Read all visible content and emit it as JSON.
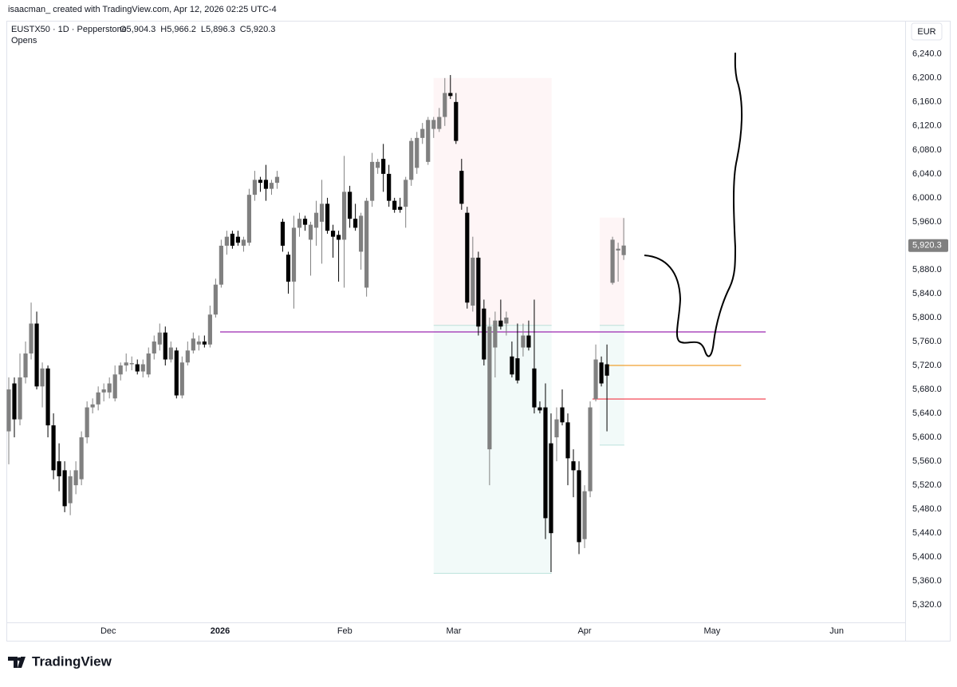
{
  "credit": "isaacman_ created with TradingView.com, Apr 12, 2026 02:25 UTC-4",
  "brand": "TradingView",
  "chart_data": {
    "type": "candlestick",
    "symbol": "EUSTX50 · 1D · Pepperstone",
    "ohlc_header": [
      "O5,904.3",
      "H5,966.2",
      "L5,896.3",
      "C5,920.3"
    ],
    "indicator": "Opens",
    "currency": "EUR",
    "up_color": "#808080",
    "down_color": "#000000",
    "open": [
      5610,
      5690,
      5630,
      5700,
      5740,
      5790,
      5685,
      5715,
      5620,
      5560,
      5545,
      5490,
      5520,
      5530,
      5600,
      5650,
      5655,
      5675,
      5675,
      5665,
      5705,
      5720,
      5722,
      5722,
      5710,
      5705,
      5740,
      5755,
      5775,
      5730,
      5745,
      5670,
      5725,
      5745,
      5755,
      5760,
      5755,
      5805,
      5855,
      5920,
      5940,
      5935,
      5920,
      5925,
      6005,
      6030,
      6030,
      6015,
      6025,
      5960,
      5905,
      5860,
      5950,
      5965,
      5930,
      5950,
      5960,
      5990,
      5945,
      5938,
      5930,
      6010,
      5965,
      5910,
      5850,
      5995,
      6050,
      6065,
      6040,
      5995,
      5985,
      5985,
      6030,
      6050,
      6100,
      6060,
      6115,
      6115,
      6135,
      6175,
      6160,
      6045,
      5975,
      5820,
      5900,
      5815,
      5580,
      5750,
      5795,
      5790,
      5735,
      5732,
      5750,
      5770,
      5715,
      5650,
      5650,
      5590,
      5600,
      5650,
      5625,
      5560,
      5545,
      5430,
      5510,
      5664,
      5725,
      5722,
      5858,
      5912,
      5904.3
    ],
    "high": [
      5700,
      5700,
      5740,
      5760,
      5825,
      5810,
      5725,
      5720,
      5640,
      5590,
      5560,
      5545,
      5560,
      5610,
      5660,
      5665,
      5685,
      5690,
      5700,
      5720,
      5725,
      5740,
      5735,
      5730,
      5730,
      5750,
      5770,
      5790,
      5785,
      5760,
      5750,
      5735,
      5760,
      5775,
      5770,
      5770,
      5820,
      5865,
      5930,
      5945,
      5945,
      5945,
      5935,
      6015,
      6045,
      6035,
      6055,
      6030,
      6045,
      5965,
      5910,
      5970,
      5975,
      5970,
      5960,
      5995,
      6030,
      6000,
      5955,
      5945,
      6070,
      6020,
      5990,
      5975,
      6000,
      6075,
      6065,
      6090,
      6055,
      6000,
      6000,
      6035,
      6100,
      6110,
      6125,
      6135,
      6135,
      6150,
      6200,
      6205,
      6175,
      6065,
      5985,
      5935,
      5910,
      5830,
      5800,
      5810,
      5830,
      5810,
      5760,
      5790,
      5790,
      5795,
      5830,
      5660,
      5690,
      5640,
      5650,
      5680,
      5640,
      5580,
      5560,
      5520,
      5660,
      5755,
      5735,
      5755,
      5935,
      5925,
      5966.2
    ],
    "low": [
      5555,
      5600,
      5620,
      5690,
      5730,
      5680,
      5650,
      5600,
      5530,
      5510,
      5475,
      5470,
      5505,
      5520,
      5590,
      5640,
      5645,
      5660,
      5665,
      5660,
      5695,
      5710,
      5712,
      5705,
      5700,
      5700,
      5730,
      5745,
      5720,
      5725,
      5665,
      5665,
      5720,
      5740,
      5745,
      5750,
      5750,
      5800,
      5850,
      5905,
      5915,
      5920,
      5910,
      5920,
      5995,
      6010,
      5995,
      6005,
      6015,
      5910,
      5840,
      5815,
      5935,
      5945,
      5870,
      5920,
      5890,
      5940,
      5900,
      5860,
      5850,
      5950,
      5945,
      5880,
      5835,
      5985,
      6040,
      6010,
      5985,
      5975,
      5975,
      5950,
      6020,
      6040,
      6090,
      6055,
      6100,
      6110,
      6120,
      6165,
      6090,
      5980,
      5815,
      5810,
      5770,
      5720,
      5520,
      5700,
      5780,
      5770,
      5700,
      5690,
      5735,
      5745,
      5640,
      5640,
      5430,
      5375,
      5560,
      5620,
      5520,
      5500,
      5405,
      5415,
      5500,
      5660,
      5685,
      5610,
      5855,
      5860,
      5896.3
    ],
    "close": [
      5680,
      5630,
      5700,
      5740,
      5790,
      5685,
      5715,
      5620,
      5545,
      5535,
      5485,
      5535,
      5545,
      5600,
      5650,
      5655,
      5675,
      5680,
      5690,
      5705,
      5720,
      5725,
      5724,
      5710,
      5722,
      5740,
      5760,
      5775,
      5730,
      5750,
      5670,
      5725,
      5745,
      5765,
      5760,
      5755,
      5805,
      5855,
      5920,
      5935,
      5920,
      5925,
      5930,
      6005,
      6030,
      6025,
      6015,
      6025,
      6035,
      5920,
      5860,
      5950,
      5965,
      5955,
      5955,
      5975,
      5990,
      5945,
      5935,
      5930,
      6010,
      5965,
      5950,
      5970,
      5995,
      6060,
      6060,
      6040,
      5995,
      5980,
      5980,
      6030,
      6095,
      6100,
      6115,
      6130,
      6130,
      6135,
      6175,
      6170,
      6095,
      5990,
      5825,
      5900,
      5785,
      5730,
      5785,
      5795,
      5785,
      5800,
      5705,
      5695,
      5770,
      5750,
      5650,
      5645,
      5465,
      5440,
      5630,
      5625,
      5565,
      5545,
      5425,
      5510,
      5650,
      5730,
      5690,
      5703,
      5930,
      5915,
      5920.3
    ],
    "last_price": {
      "value": 5920.3,
      "label": "5,920.3"
    },
    "xlim": [
      -0.4,
      160.3
    ],
    "xticks": [
      {
        "value": 17.8,
        "label": "Dec"
      },
      {
        "value": 37.8,
        "label": "2026"
      },
      {
        "value": 60.1,
        "label": "Feb"
      },
      {
        "value": 79.6,
        "label": "Mar"
      },
      {
        "value": 103.0,
        "label": "Apr"
      },
      {
        "value": 125.8,
        "label": "May"
      },
      {
        "value": 148.1,
        "label": "Jun"
      }
    ],
    "ylim": [
      5291,
      6293
    ],
    "yticks": [
      {
        "value": 5320,
        "label": "5,320.0"
      },
      {
        "value": 5360,
        "label": "5,360.0"
      },
      {
        "value": 5400,
        "label": "5,400.0"
      },
      {
        "value": 5440,
        "label": "5,440.0"
      },
      {
        "value": 5480,
        "label": "5,480.0"
      },
      {
        "value": 5520,
        "label": "5,520.0"
      },
      {
        "value": 5560,
        "label": "5,560.0"
      },
      {
        "value": 5600,
        "label": "5,600.0"
      },
      {
        "value": 5640,
        "label": "5,640.0"
      },
      {
        "value": 5680,
        "label": "5,680.0"
      },
      {
        "value": 5720,
        "label": "5,720.0"
      },
      {
        "value": 5760,
        "label": "5,760.0"
      },
      {
        "value": 5800,
        "label": "5,800.0"
      },
      {
        "value": 5840,
        "label": "5,840.0"
      },
      {
        "value": 5880,
        "label": "5,880.0"
      },
      {
        "value": 5920,
        "label": "5,920.0"
      },
      {
        "value": 5960,
        "label": "5,960.0"
      },
      {
        "value": 6000,
        "label": "6,000.0"
      },
      {
        "value": 6040,
        "label": "6,040.0"
      },
      {
        "value": 6080,
        "label": "6,080.0"
      },
      {
        "value": 6120,
        "label": "6,120.0"
      },
      {
        "value": 6160,
        "label": "6,160.0"
      },
      {
        "value": 6200,
        "label": "6,200.0"
      },
      {
        "value": 6240,
        "label": "6,240.0"
      }
    ],
    "hlines": [
      {
        "value": 5776,
        "from": 37.8,
        "to": 135.4,
        "color": "#9c27b0"
      },
      {
        "value": 5720,
        "from": 107,
        "to": 131,
        "color": "#f0a030"
      },
      {
        "value": 5664,
        "from": 104.4,
        "to": 135.4,
        "color": "#f23645"
      }
    ],
    "positions": [
      {
        "from": 76,
        "to": 97.1,
        "top": 6200,
        "entry": 5787,
        "bottom": 5373
      },
      {
        "from": 105.7,
        "to": 110.1,
        "top": 5967,
        "entry": 5787,
        "bottom": 5587
      }
    ]
  }
}
